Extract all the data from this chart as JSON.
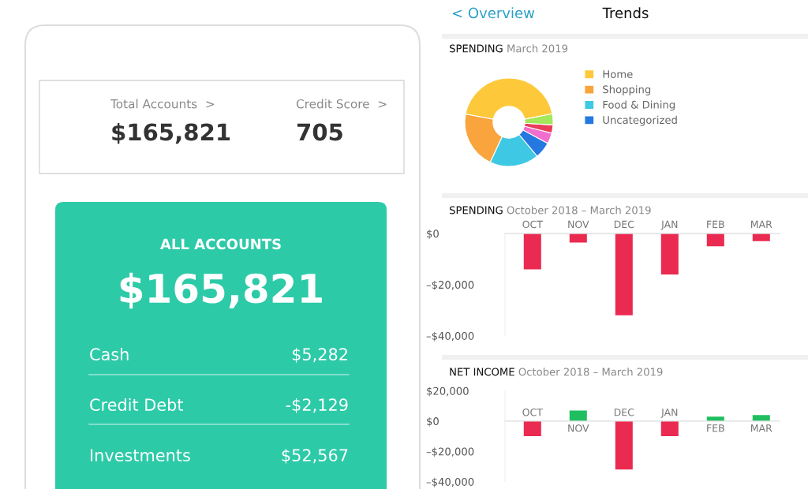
{
  "chart_data": [
    {
      "type": "other",
      "annotations": [
        "Total Accounts  >",
        "$165,821",
        "Credit Score  >",
        "705",
        "ALL ACCOUNTS",
        "$165,821",
        "Cash",
        "$5,282",
        "Credit Debt",
        "-$2,129",
        "Investments",
        "$52,567"
      ]
    },
    {
      "type": "other",
      "annotations": [
        "< Overview",
        "Trends"
      ]
    },
    {
      "type": "donut",
      "title": "SPENDING",
      "subtitle": "March 2019",
      "categories": [
        "Home",
        "Shopping",
        "Food & Dining",
        "Uncategorized",
        null,
        null,
        null
      ],
      "values": [
        44,
        21,
        18,
        6,
        4,
        3,
        4
      ],
      "colors": [
        "#fdc93b",
        "#f9a43c",
        "#3fc8e4",
        "#2478e0",
        "#f06fce",
        "#ea3d5c",
        "#a4e75a"
      ],
      "legend": "right"
    },
    {
      "type": "bar",
      "title": "SPENDING",
      "subtitle": "October 2018 – March 2019",
      "categories": [
        "OCT",
        "NOV",
        "DEC",
        "JAN",
        "FEB",
        "MAR"
      ],
      "values": [
        -14000,
        -3500,
        -32000,
        -16000,
        -5000,
        -3000
      ],
      "color": "#ea2a50",
      "ylim": [
        -40000,
        0
      ],
      "yticks": [
        {
          "value": 0,
          "label": "$0"
        },
        {
          "value": -20000,
          "label": "–$20,000"
        },
        {
          "value": -40000,
          "label": "–$40,000"
        }
      ]
    },
    {
      "type": "bar",
      "title": "NET INCOME",
      "subtitle": "October 2018 – March 2019",
      "categories": [
        "OCT",
        "NOV",
        "DEC",
        "JAN",
        "FEB",
        "MAR"
      ],
      "values": [
        -10000,
        7000,
        -32000,
        -10000,
        3000,
        4000
      ],
      "colors": [
        "#ea2a50",
        "#1fbf5f",
        "#ea2a50",
        "#ea2a50",
        "#1fbf5f",
        "#1fbf5f"
      ],
      "ylim": [
        -40000,
        20000
      ],
      "yticks": [
        {
          "value": 20000,
          "label": "$20,000"
        },
        {
          "value": 0,
          "label": "$0"
        },
        {
          "value": -20000,
          "label": "–$20,000"
        },
        {
          "value": -40000,
          "label": "–$40,000"
        }
      ]
    }
  ]
}
